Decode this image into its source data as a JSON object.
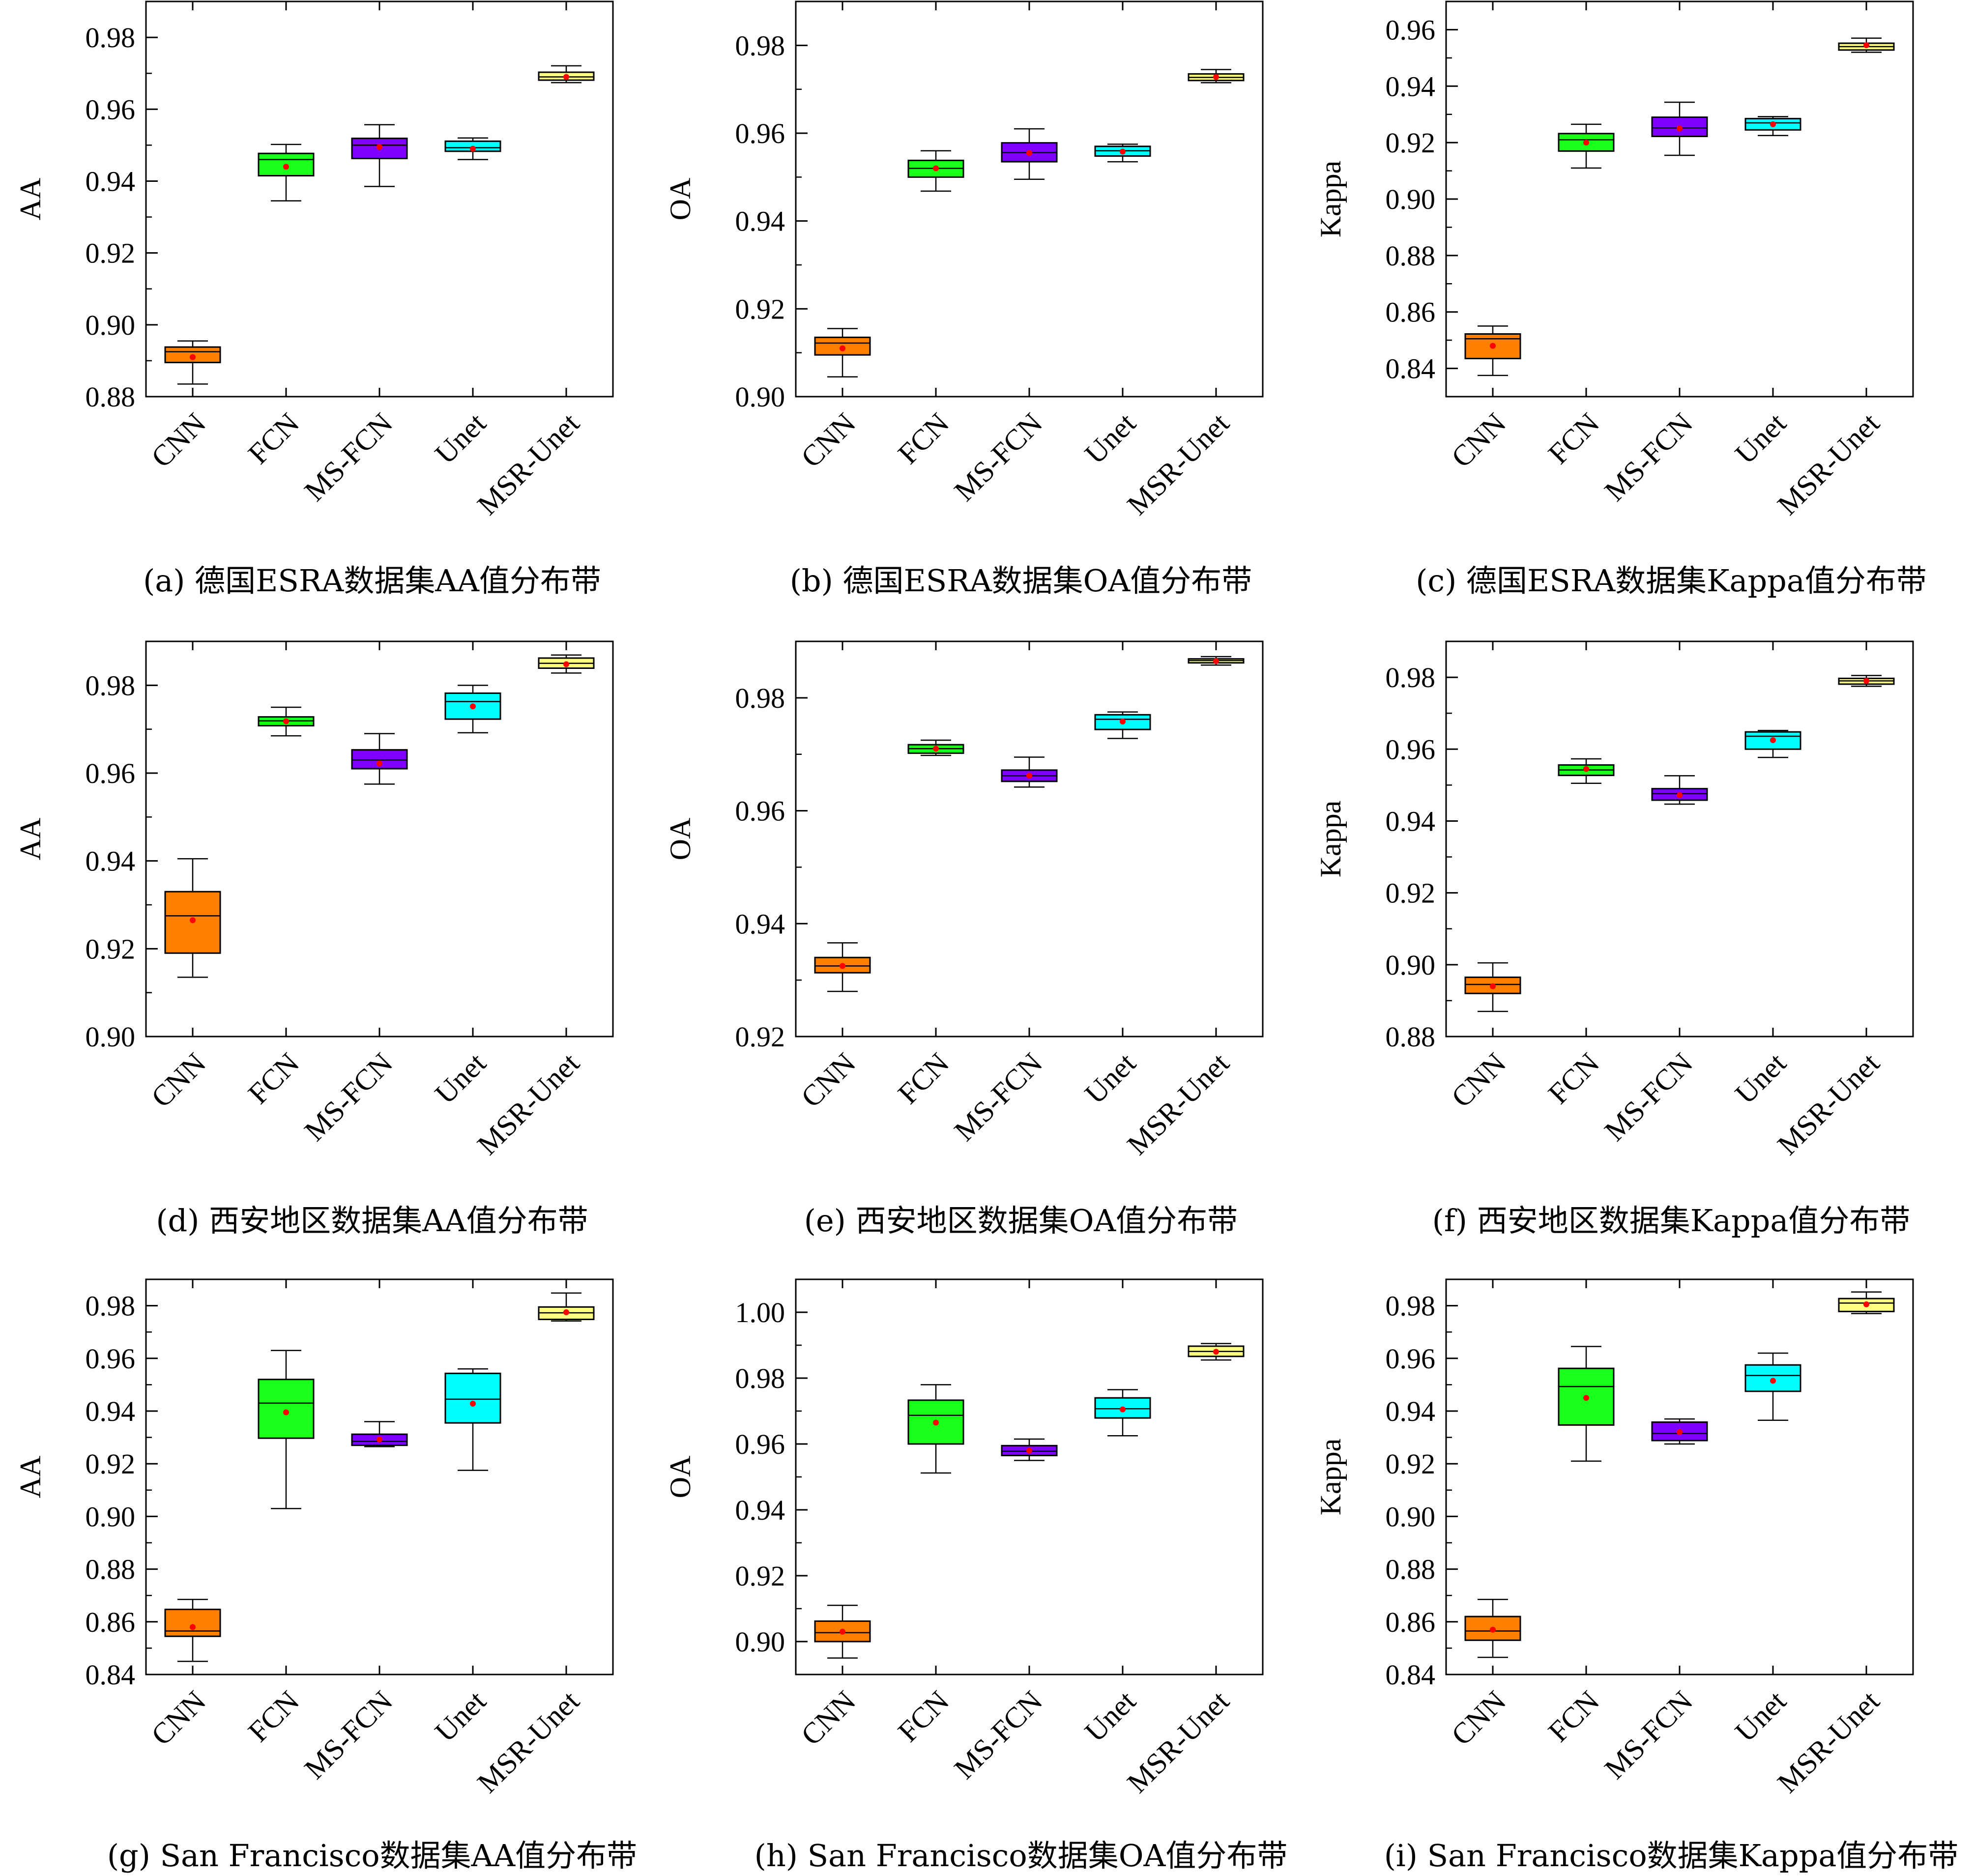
{
  "categories": [
    "CNN",
    "FCN",
    "MS-FCN",
    "Unet",
    "MSR-Unet"
  ],
  "colors": [
    "#ff7f00",
    "#1aff1a",
    "#8000ff",
    "#00ffff",
    "#ffff80"
  ],
  "mean_marker_color": "#ff0000",
  "chart_data": [
    {
      "type": "box",
      "caption": "(a) 德国ESRA数据集AA值分布带",
      "ylabel": "AA",
      "ylim": [
        0.88,
        0.99
      ],
      "yticks": [
        "0.88",
        "0.90",
        "0.92",
        "0.94",
        "0.96",
        "0.98"
      ],
      "boxes": [
        {
          "category": "CNN",
          "whisker_low": 0.8835,
          "q1": 0.8895,
          "median": 0.8925,
          "q3": 0.8938,
          "whisker_high": 0.8955,
          "mean": 0.891
        },
        {
          "category": "FCN",
          "whisker_low": 0.9345,
          "q1": 0.9415,
          "median": 0.946,
          "q3": 0.9477,
          "whisker_high": 0.9502,
          "mean": 0.944
        },
        {
          "category": "MS-FCN",
          "whisker_low": 0.9385,
          "q1": 0.9463,
          "median": 0.95,
          "q3": 0.9519,
          "whisker_high": 0.9557,
          "mean": 0.9495
        },
        {
          "category": "Unet",
          "whisker_low": 0.946,
          "q1": 0.9483,
          "median": 0.9493,
          "q3": 0.9511,
          "whisker_high": 0.952,
          "mean": 0.949
        },
        {
          "category": "MSR-Unet",
          "whisker_low": 0.9674,
          "q1": 0.9681,
          "median": 0.969,
          "q3": 0.9703,
          "whisker_high": 0.9721,
          "mean": 0.969
        }
      ]
    },
    {
      "type": "box",
      "caption": "(b) 德国ESRA数据集OA值分布带",
      "ylabel": "OA",
      "ylim": [
        0.9,
        0.99
      ],
      "yticks": [
        "0.90",
        "0.92",
        "0.94",
        "0.96",
        "0.98"
      ],
      "boxes": [
        {
          "category": "CNN",
          "whisker_low": 0.9045,
          "q1": 0.9095,
          "median": 0.9122,
          "q3": 0.9135,
          "whisker_high": 0.9155,
          "mean": 0.911
        },
        {
          "category": "FCN",
          "whisker_low": 0.9468,
          "q1": 0.95,
          "median": 0.952,
          "q3": 0.9538,
          "whisker_high": 0.956,
          "mean": 0.952
        },
        {
          "category": "MS-FCN",
          "whisker_low": 0.9495,
          "q1": 0.9535,
          "median": 0.9556,
          "q3": 0.9578,
          "whisker_high": 0.961,
          "mean": 0.9555
        },
        {
          "category": "Unet",
          "whisker_low": 0.9535,
          "q1": 0.9548,
          "median": 0.956,
          "q3": 0.957,
          "whisker_high": 0.9575,
          "mean": 0.9558
        },
        {
          "category": "MSR-Unet",
          "whisker_low": 0.9715,
          "q1": 0.972,
          "median": 0.9727,
          "q3": 0.9735,
          "whisker_high": 0.9745,
          "mean": 0.9728
        }
      ]
    },
    {
      "type": "box",
      "caption": "(c) 德国ESRA数据集Kappa值分布带",
      "ylabel": "Kappa",
      "ylim": [
        0.83,
        0.97
      ],
      "yticks": [
        "0.84",
        "0.86",
        "0.88",
        "0.90",
        "0.92",
        "0.94",
        "0.96"
      ],
      "boxes": [
        {
          "category": "CNN",
          "whisker_low": 0.8375,
          "q1": 0.8435,
          "median": 0.8505,
          "q3": 0.8522,
          "whisker_high": 0.855,
          "mean": 0.848
        },
        {
          "category": "FCN",
          "whisker_low": 0.911,
          "q1": 0.917,
          "median": 0.921,
          "q3": 0.9232,
          "whisker_high": 0.9265,
          "mean": 0.92
        },
        {
          "category": "MS-FCN",
          "whisker_low": 0.9155,
          "q1": 0.9222,
          "median": 0.9252,
          "q3": 0.929,
          "whisker_high": 0.9343,
          "mean": 0.925
        },
        {
          "category": "Unet",
          "whisker_low": 0.9225,
          "q1": 0.9245,
          "median": 0.927,
          "q3": 0.9285,
          "whisker_high": 0.9292,
          "mean": 0.9265
        },
        {
          "category": "MSR-Unet",
          "whisker_low": 0.952,
          "q1": 0.9528,
          "median": 0.954,
          "q3": 0.9552,
          "whisker_high": 0.957,
          "mean": 0.9545
        }
      ]
    },
    {
      "type": "box",
      "caption": "(d) 西安地区数据集AA值分布带",
      "ylabel": "AA",
      "ylim": [
        0.9,
        0.99
      ],
      "yticks": [
        "0.90",
        "0.92",
        "0.94",
        "0.96",
        "0.98"
      ],
      "boxes": [
        {
          "category": "CNN",
          "whisker_low": 0.9135,
          "q1": 0.919,
          "median": 0.9275,
          "q3": 0.933,
          "whisker_high": 0.9405,
          "mean": 0.9265
        },
        {
          "category": "FCN",
          "whisker_low": 0.9685,
          "q1": 0.9708,
          "median": 0.9719,
          "q3": 0.9728,
          "whisker_high": 0.975,
          "mean": 0.9718
        },
        {
          "category": "MS-FCN",
          "whisker_low": 0.9575,
          "q1": 0.961,
          "median": 0.963,
          "q3": 0.9653,
          "whisker_high": 0.969,
          "mean": 0.9622
        },
        {
          "category": "Unet",
          "whisker_low": 0.9692,
          "q1": 0.9723,
          "median": 0.9763,
          "q3": 0.9782,
          "whisker_high": 0.98,
          "mean": 0.9752
        },
        {
          "category": "MSR-Unet",
          "whisker_low": 0.9828,
          "q1": 0.9839,
          "median": 0.985,
          "q3": 0.9862,
          "whisker_high": 0.9869,
          "mean": 0.9848
        }
      ]
    },
    {
      "type": "box",
      "caption": "(e) 西安地区数据集OA值分布带",
      "ylabel": "OA",
      "ylim": [
        0.92,
        0.99
      ],
      "yticks": [
        "0.92",
        "0.94",
        "0.96",
        "0.98"
      ],
      "boxes": [
        {
          "category": "CNN",
          "whisker_low": 0.928,
          "q1": 0.9313,
          "median": 0.9325,
          "q3": 0.934,
          "whisker_high": 0.9366,
          "mean": 0.9325
        },
        {
          "category": "FCN",
          "whisker_low": 0.9698,
          "q1": 0.9702,
          "median": 0.971,
          "q3": 0.9717,
          "whisker_high": 0.9725,
          "mean": 0.971
        },
        {
          "category": "MS-FCN",
          "whisker_low": 0.9642,
          "q1": 0.9652,
          "median": 0.9662,
          "q3": 0.9672,
          "whisker_high": 0.9695,
          "mean": 0.9662
        },
        {
          "category": "Unet",
          "whisker_low": 0.9728,
          "q1": 0.9744,
          "median": 0.9762,
          "q3": 0.977,
          "whisker_high": 0.9775,
          "mean": 0.9758
        },
        {
          "category": "MSR-Unet",
          "whisker_low": 0.9858,
          "q1": 0.9862,
          "median": 0.9866,
          "q3": 0.9869,
          "whisker_high": 0.9873,
          "mean": 0.9865
        }
      ]
    },
    {
      "type": "box",
      "caption": "(f) 西安地区数据集Kappa值分布带",
      "ylabel": "Kappa",
      "ylim": [
        0.88,
        0.99
      ],
      "yticks": [
        "0.88",
        "0.90",
        "0.92",
        "0.94",
        "0.96",
        "0.98"
      ],
      "boxes": [
        {
          "category": "CNN",
          "whisker_low": 0.887,
          "q1": 0.892,
          "median": 0.8945,
          "q3": 0.8965,
          "whisker_high": 0.9005,
          "mean": 0.894
        },
        {
          "category": "FCN",
          "whisker_low": 0.9505,
          "q1": 0.9527,
          "median": 0.9542,
          "q3": 0.9556,
          "whisker_high": 0.9573,
          "mean": 0.9545
        },
        {
          "category": "MS-FCN",
          "whisker_low": 0.9447,
          "q1": 0.9458,
          "median": 0.9476,
          "q3": 0.949,
          "whisker_high": 0.9526,
          "mean": 0.9472
        },
        {
          "category": "Unet",
          "whisker_low": 0.9577,
          "q1": 0.96,
          "median": 0.9636,
          "q3": 0.9648,
          "whisker_high": 0.9652,
          "mean": 0.9625
        },
        {
          "category": "MSR-Unet",
          "whisker_low": 0.9775,
          "q1": 0.9781,
          "median": 0.979,
          "q3": 0.9797,
          "whisker_high": 0.9805,
          "mean": 0.979
        }
      ]
    },
    {
      "type": "box",
      "caption": "(g) San Francisco数据集AA值分布带",
      "ylabel": "AA",
      "ylim": [
        0.84,
        0.99
      ],
      "yticks": [
        "0.84",
        "0.86",
        "0.88",
        "0.90",
        "0.92",
        "0.94",
        "0.96",
        "0.98"
      ],
      "boxes": [
        {
          "category": "CNN",
          "whisker_low": 0.845,
          "q1": 0.8545,
          "median": 0.8565,
          "q3": 0.8647,
          "whisker_high": 0.8685,
          "mean": 0.858
        },
        {
          "category": "FCN",
          "whisker_low": 0.903,
          "q1": 0.9297,
          "median": 0.943,
          "q3": 0.952,
          "whisker_high": 0.963,
          "mean": 0.9395
        },
        {
          "category": "MS-FCN",
          "whisker_low": 0.9265,
          "q1": 0.927,
          "median": 0.9285,
          "q3": 0.9312,
          "whisker_high": 0.936,
          "mean": 0.9292
        },
        {
          "category": "Unet",
          "whisker_low": 0.9175,
          "q1": 0.9355,
          "median": 0.9445,
          "q3": 0.9543,
          "whisker_high": 0.956,
          "mean": 0.9428
        },
        {
          "category": "MSR-Unet",
          "whisker_low": 0.9742,
          "q1": 0.9748,
          "median": 0.9773,
          "q3": 0.9795,
          "whisker_high": 0.9848,
          "mean": 0.9775
        }
      ]
    },
    {
      "type": "box",
      "caption": "(h) San Francisco数据集OA值分布带",
      "ylabel": "OA",
      "ylim": [
        0.89,
        1.01
      ],
      "yticks": [
        "0.90",
        "0.92",
        "0.94",
        "0.96",
        "0.98",
        "1.00"
      ],
      "boxes": [
        {
          "category": "CNN",
          "whisker_low": 0.895,
          "q1": 0.9,
          "median": 0.9027,
          "q3": 0.9062,
          "whisker_high": 0.911,
          "mean": 0.903
        },
        {
          "category": "FCN",
          "whisker_low": 0.9512,
          "q1": 0.96,
          "median": 0.9687,
          "q3": 0.9733,
          "whisker_high": 0.978,
          "mean": 0.9665
        },
        {
          "category": "MS-FCN",
          "whisker_low": 0.955,
          "q1": 0.9565,
          "median": 0.9578,
          "q3": 0.9595,
          "whisker_high": 0.9615,
          "mean": 0.958
        },
        {
          "category": "Unet",
          "whisker_low": 0.9625,
          "q1": 0.9679,
          "median": 0.9707,
          "q3": 0.974,
          "whisker_high": 0.9765,
          "mean": 0.9705
        },
        {
          "category": "MSR-Unet",
          "whisker_low": 0.9855,
          "q1": 0.9866,
          "median": 0.9881,
          "q3": 0.9897,
          "whisker_high": 0.9905,
          "mean": 0.988
        }
      ]
    },
    {
      "type": "box",
      "caption": "(i) San Francisco数据集Kappa值分布带",
      "ylabel": "Kappa",
      "ylim": [
        0.84,
        0.99
      ],
      "yticks": [
        "0.84",
        "0.86",
        "0.88",
        "0.90",
        "0.92",
        "0.94",
        "0.96",
        "0.98"
      ],
      "boxes": [
        {
          "category": "CNN",
          "whisker_low": 0.8465,
          "q1": 0.853,
          "median": 0.8565,
          "q3": 0.862,
          "whisker_high": 0.8685,
          "mean": 0.857
        },
        {
          "category": "FCN",
          "whisker_low": 0.921,
          "q1": 0.9347,
          "median": 0.9493,
          "q3": 0.9562,
          "whisker_high": 0.9645,
          "mean": 0.945
        },
        {
          "category": "MS-FCN",
          "whisker_low": 0.9275,
          "q1": 0.9288,
          "median": 0.9315,
          "q3": 0.9358,
          "whisker_high": 0.937,
          "mean": 0.932
        },
        {
          "category": "Unet",
          "whisker_low": 0.9365,
          "q1": 0.9475,
          "median": 0.9535,
          "q3": 0.9575,
          "whisker_high": 0.962,
          "mean": 0.9515
        },
        {
          "category": "MSR-Unet",
          "whisker_low": 0.977,
          "q1": 0.9778,
          "median": 0.981,
          "q3": 0.9827,
          "whisker_high": 0.9852,
          "mean": 0.9805
        }
      ]
    }
  ]
}
